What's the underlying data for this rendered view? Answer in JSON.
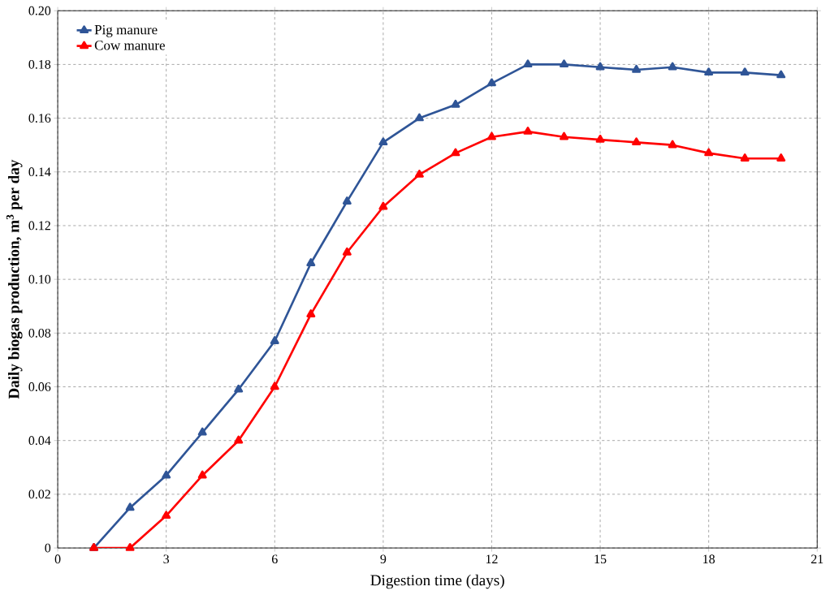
{
  "chart_data": {
    "type": "line",
    "xlabel": "Digestion time (days)",
    "ylabel": "Daily biogas production, m$^{3}$ per day",
    "x": [
      1,
      2,
      3,
      4,
      5,
      6,
      7,
      8,
      9,
      10,
      11,
      12,
      13,
      14,
      15,
      16,
      17,
      18,
      19,
      20
    ],
    "series": [
      {
        "name": "Pig manure",
        "color": "#2f5597",
        "values": [
          0,
          0.015,
          0.027,
          0.043,
          0.059,
          0.077,
          0.106,
          0.129,
          0.151,
          0.16,
          0.165,
          0.173,
          0.18,
          0.18,
          0.179,
          0.178,
          0.179,
          0.177,
          0.177,
          0.176
        ]
      },
      {
        "name": "Cow manure",
        "color": "#ff0000",
        "values": [
          0,
          0,
          0.012,
          0.027,
          0.04,
          0.06,
          0.087,
          0.11,
          0.127,
          0.139,
          0.147,
          0.153,
          0.155,
          0.153,
          0.152,
          0.151,
          0.15,
          0.147,
          0.145,
          0.145
        ]
      }
    ],
    "xlim": [
      0,
      21
    ],
    "xticks": [
      0,
      3,
      6,
      9,
      12,
      15,
      18,
      21
    ],
    "ylim": [
      0,
      0.2
    ],
    "yticks": [
      0,
      {
        "value": 0.02,
        "label": "0.02"
      },
      {
        "value": 0.04,
        "label": "0.04"
      },
      {
        "value": 0.06,
        "label": "0.06"
      },
      {
        "value": 0.08,
        "label": "0.08"
      },
      {
        "value": 0.1,
        "label": "0.10"
      },
      {
        "value": 0.12,
        "label": "0.12"
      },
      {
        "value": 0.14,
        "label": "0.14"
      },
      {
        "value": 0.16,
        "label": "0.16"
      },
      {
        "value": 0.18,
        "label": "0.18"
      },
      {
        "value": 0.2,
        "label": "0.20"
      }
    ],
    "grid": true,
    "legend": "top left",
    "marker": "triangle"
  }
}
